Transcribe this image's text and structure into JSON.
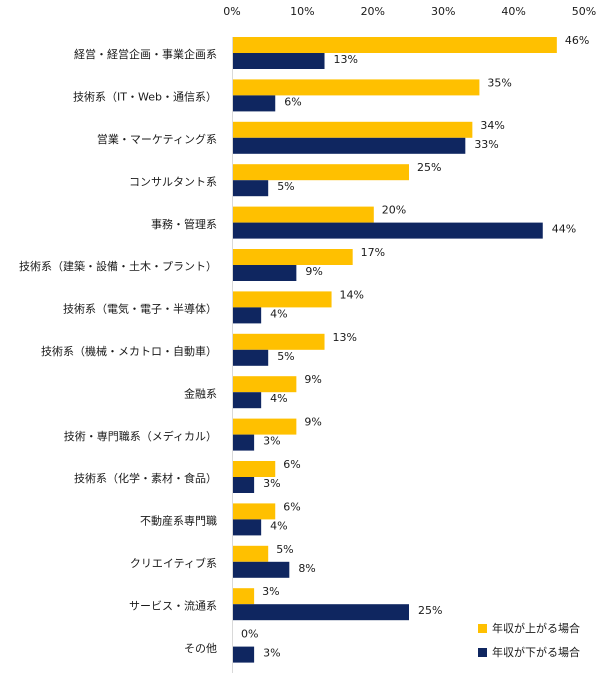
{
  "chart_data": {
    "type": "bar",
    "orientation": "horizontal",
    "categories": [
      "経営・経営企画・事業企画系",
      "技術系（IT・Web・通信系）",
      "営業・マーケティング系",
      "コンサルタント系",
      "事務・管理系",
      "技術系（建築・設備・土木・プラント）",
      "技術系（電気・電子・半導体）",
      "技術系（機械・メカトロ・自動車）",
      "金融系",
      "技術・専門職系（メディカル）",
      "技術系（化学・素材・食品）",
      "不動産系専門職",
      "クリエイティブ系",
      "サービス・流通系",
      "その他"
    ],
    "series": [
      {
        "name": "年収が上がる場合",
        "color": "#FFC000",
        "values": [
          46,
          35,
          34,
          25,
          20,
          17,
          14,
          13,
          9,
          9,
          6,
          6,
          5,
          3,
          0
        ],
        "labels": [
          "46%",
          "35%",
          "34%",
          "25%",
          "20%",
          "17%",
          "14%",
          "13%",
          "9%",
          "9%",
          "6%",
          "6%",
          "5%",
          "3%",
          "0%"
        ]
      },
      {
        "name": "年収が下がる場合",
        "color": "#0F2660",
        "values": [
          13,
          6,
          33,
          5,
          44,
          9,
          4,
          5,
          4,
          3,
          3,
          4,
          8,
          25,
          3
        ],
        "labels": [
          "13%",
          "6%",
          "33%",
          "5%",
          "44%",
          "9%",
          "4%",
          "5%",
          "4%",
          "3%",
          "3%",
          "4%",
          "8%",
          "25%",
          "3%"
        ]
      }
    ],
    "xlim": [
      0,
      50
    ],
    "xticks": [
      0,
      10,
      20,
      30,
      40,
      50
    ],
    "xtick_labels": [
      "0%",
      "10%",
      "20%",
      "30%",
      "40%",
      "50%"
    ],
    "axis_position": "top",
    "legend_position": "bottom-right",
    "title": "",
    "xlabel": "",
    "ylabel": ""
  }
}
